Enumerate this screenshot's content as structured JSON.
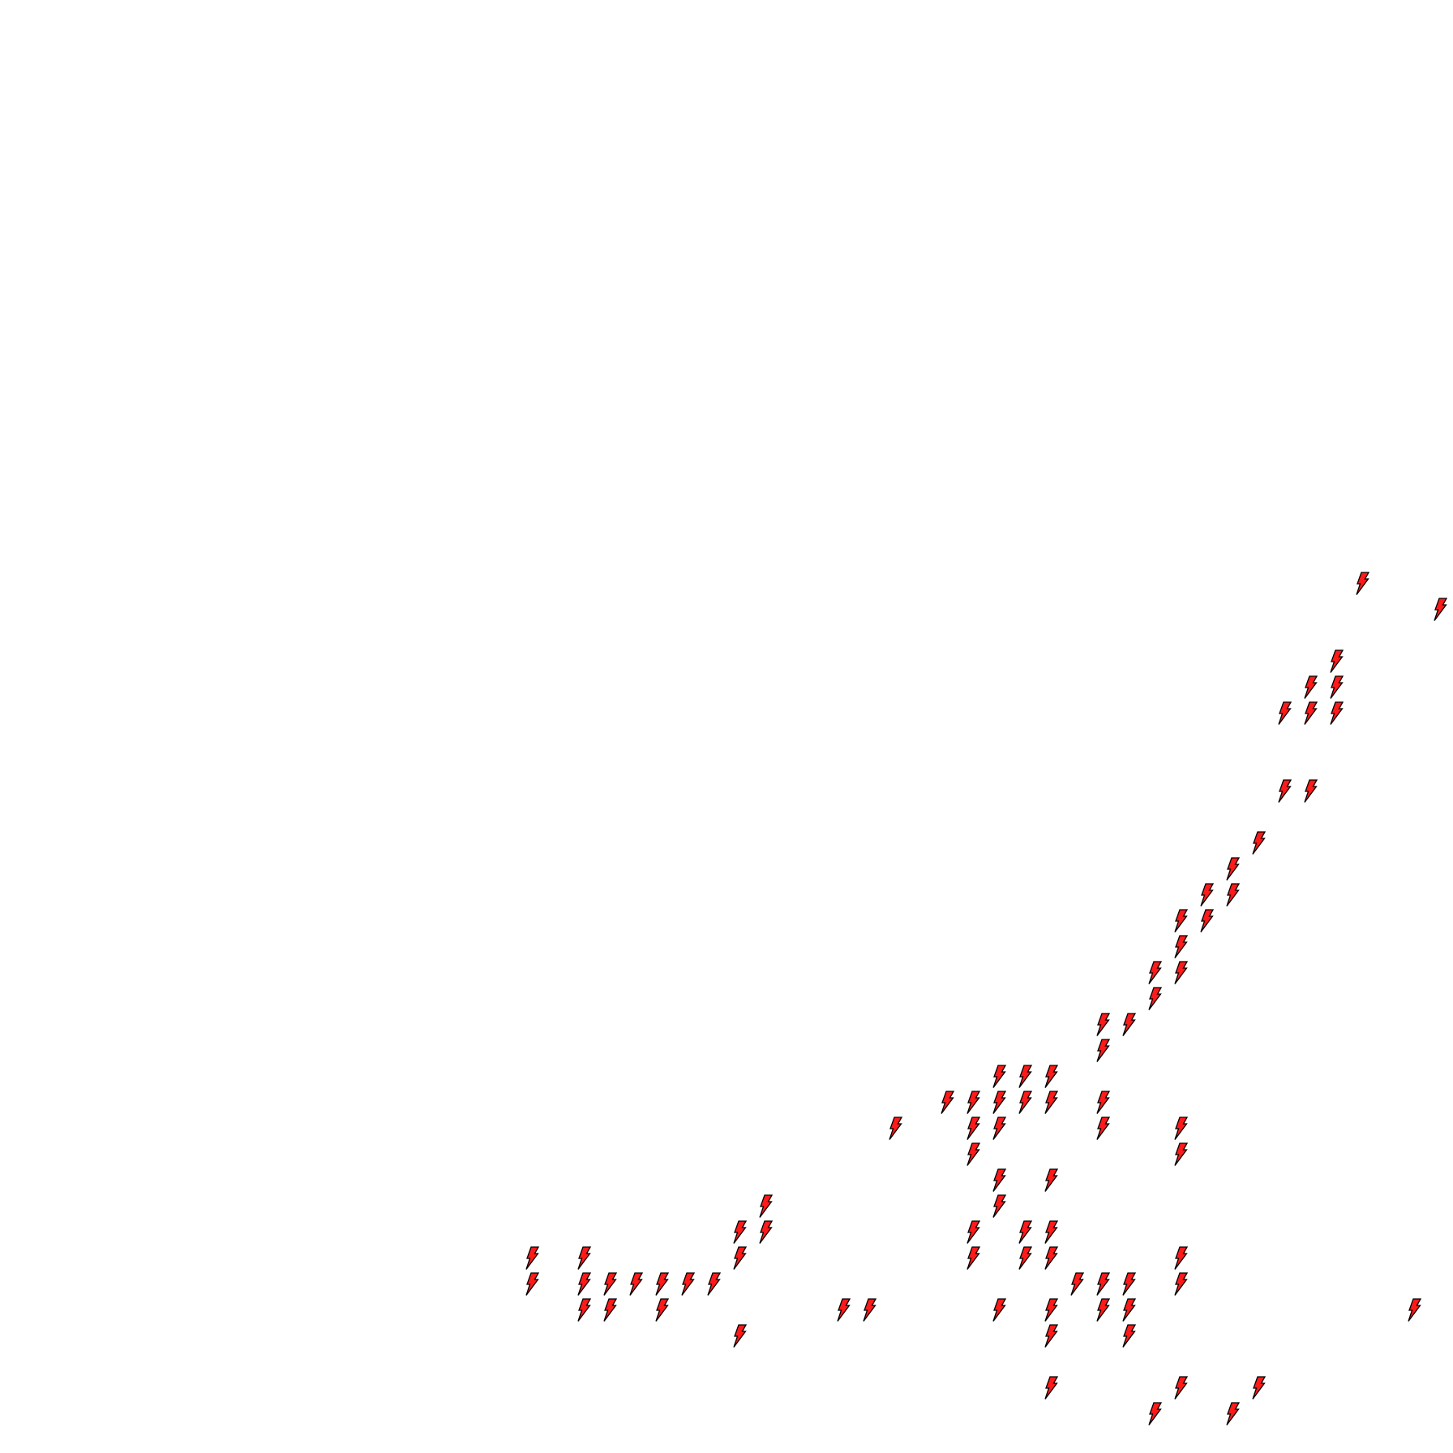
{
  "map": {
    "background": "#ffffff",
    "marker_icon": "lightning-bolt-icon",
    "marker_fill": "#ff1a1a",
    "marker_outline": "#000000"
  }
}
